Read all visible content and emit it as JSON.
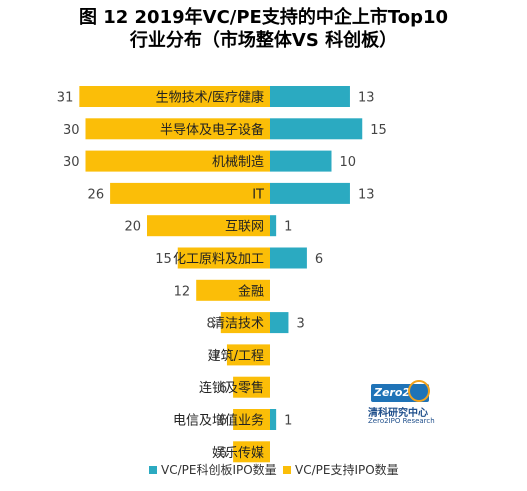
{
  "chart_data": {
    "type": "bar",
    "title_line1": "图 12 2019年VC/PE支持的中企上市Top10",
    "title_line2": "行业分布（市场整体VS 科创板）",
    "categories": [
      "生物技术/医疗健康",
      "半导体及电子设备",
      "机械制造",
      "IT",
      "互联网",
      "化工原料及加工",
      "金融",
      "清洁技术",
      "建筑/工程",
      "连锁及零售",
      "电信及增值业务",
      "娱乐传媒"
    ],
    "series": [
      {
        "name": "VC/PE科创板IPO数量",
        "values": [
          13,
          15,
          10,
          13,
          1,
          6,
          0,
          3,
          0,
          0,
          1,
          0
        ]
      },
      {
        "name": "VC/PE支持IPO数量",
        "values": [
          31,
          30,
          30,
          26,
          20,
          15,
          12,
          8,
          7,
          6,
          6,
          6
        ]
      }
    ],
    "value_labels_right": [
      "13",
      "15",
      "10",
      "13",
      "1",
      "6",
      "",
      "3",
      "",
      "",
      "1",
      ""
    ],
    "value_labels_left": [
      "31",
      "30",
      "30",
      "26",
      "20",
      "15",
      "12",
      "8",
      "7",
      "6",
      "6",
      "6"
    ],
    "colors": {
      "kcb": "#2baac1",
      "total": "#fbbe08"
    },
    "legend_position": "bottom-left",
    "grid": false
  },
  "logo": {
    "box_text": "Zero2",
    "cn_text": "清科研究中心",
    "en_text": "Zero2IPO Research"
  }
}
